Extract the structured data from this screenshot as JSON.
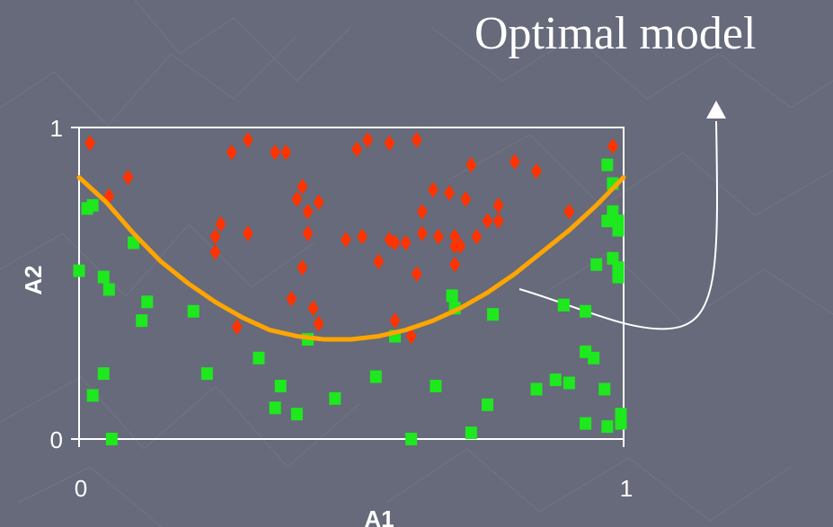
{
  "slide": {
    "title": "Optimal model"
  },
  "colors": {
    "background": "#666a7a",
    "class_a": "#ff3300",
    "class_b": "#1ee81e",
    "model_curve": "#ffa500",
    "axis": "#ffffff"
  },
  "chart_data": {
    "type": "scatter",
    "title": "",
    "xlabel": "A1",
    "ylabel": "A2",
    "xlim": [
      0,
      1
    ],
    "ylim": [
      0,
      1
    ],
    "x_ticks": [
      "0",
      "1"
    ],
    "y_ticks": [
      "0",
      "1"
    ],
    "grid": false,
    "series": [
      {
        "marker": "diamond",
        "color": "#ff3300",
        "points": [
          [
            0.02,
            0.95
          ],
          [
            0.055,
            0.78
          ],
          [
            0.09,
            0.84
          ],
          [
            0.28,
            0.92
          ],
          [
            0.31,
            0.96
          ],
          [
            0.36,
            0.92
          ],
          [
            0.38,
            0.92
          ],
          [
            0.51,
            0.93
          ],
          [
            0.53,
            0.96
          ],
          [
            0.57,
            0.95
          ],
          [
            0.62,
            0.96
          ],
          [
            0.72,
            0.88
          ],
          [
            0.8,
            0.89
          ],
          [
            0.84,
            0.86
          ],
          [
            0.98,
            0.94
          ],
          [
            0.4,
            0.77
          ],
          [
            0.44,
            0.76
          ],
          [
            0.41,
            0.81
          ],
          [
            0.65,
            0.8
          ],
          [
            0.68,
            0.79
          ],
          [
            0.71,
            0.77
          ],
          [
            0.63,
            0.73
          ],
          [
            0.52,
            0.65
          ],
          [
            0.26,
            0.69
          ],
          [
            0.25,
            0.65
          ],
          [
            0.25,
            0.6
          ],
          [
            0.31,
            0.66
          ],
          [
            0.42,
            0.73
          ],
          [
            0.42,
            0.66
          ],
          [
            0.49,
            0.64
          ],
          [
            0.58,
            0.63
          ],
          [
            0.55,
            0.57
          ],
          [
            0.57,
            0.64
          ],
          [
            0.6,
            0.63
          ],
          [
            0.63,
            0.66
          ],
          [
            0.66,
            0.65
          ],
          [
            0.69,
            0.65
          ],
          [
            0.7,
            0.62
          ],
          [
            0.73,
            0.65
          ],
          [
            0.75,
            0.7
          ],
          [
            0.77,
            0.7
          ],
          [
            0.77,
            0.75
          ],
          [
            0.9,
            0.73
          ],
          [
            0.41,
            0.55
          ],
          [
            0.43,
            0.42
          ],
          [
            0.44,
            0.37
          ],
          [
            0.39,
            0.45
          ],
          [
            0.29,
            0.36
          ],
          [
            0.62,
            0.53
          ],
          [
            0.58,
            0.38
          ],
          [
            0.61,
            0.33
          ],
          [
            0.69,
            0.56
          ],
          [
            0.69,
            0.62
          ]
        ]
      },
      {
        "marker": "square",
        "color": "#1ee81e",
        "points": [
          [
            0.0,
            0.54
          ],
          [
            0.015,
            0.74
          ],
          [
            0.045,
            0.52
          ],
          [
            0.025,
            0.75
          ],
          [
            0.1,
            0.63
          ],
          [
            0.125,
            0.44
          ],
          [
            0.115,
            0.38
          ],
          [
            0.21,
            0.41
          ],
          [
            0.055,
            0.48
          ],
          [
            0.045,
            0.21
          ],
          [
            0.025,
            0.14
          ],
          [
            0.06,
            0.0
          ],
          [
            0.235,
            0.21
          ],
          [
            0.33,
            0.26
          ],
          [
            0.37,
            0.17
          ],
          [
            0.36,
            0.1
          ],
          [
            0.4,
            0.08
          ],
          [
            0.47,
            0.13
          ],
          [
            0.42,
            0.32
          ],
          [
            0.58,
            0.33
          ],
          [
            0.545,
            0.2
          ],
          [
            0.61,
            0.0
          ],
          [
            0.655,
            0.17
          ],
          [
            0.685,
            0.46
          ],
          [
            0.69,
            0.42
          ],
          [
            0.76,
            0.4
          ],
          [
            0.75,
            0.11
          ],
          [
            0.72,
            0.02
          ],
          [
            0.89,
            0.43
          ],
          [
            0.84,
            0.16
          ],
          [
            0.875,
            0.19
          ],
          [
            0.9,
            0.18
          ],
          [
            0.93,
            0.41
          ],
          [
            0.93,
            0.28
          ],
          [
            0.945,
            0.26
          ],
          [
            0.965,
            0.16
          ],
          [
            0.93,
            0.05
          ],
          [
            0.97,
            0.04
          ],
          [
            0.95,
            0.56
          ],
          [
            0.98,
            0.58
          ],
          [
            0.99,
            0.55
          ],
          [
            0.99,
            0.52
          ],
          [
            0.97,
            0.7
          ],
          [
            0.98,
            0.73
          ],
          [
            0.99,
            0.67
          ],
          [
            0.995,
            0.05
          ],
          [
            0.995,
            0.08
          ],
          [
            0.97,
            0.88
          ],
          [
            0.98,
            0.82
          ],
          [
            0.99,
            0.7
          ],
          [
            0.89,
            0.43
          ]
        ]
      },
      {
        "marker": "line",
        "color": "#ffa500",
        "x": [
          0.0,
          0.05,
          0.1,
          0.15,
          0.2,
          0.25,
          0.3,
          0.35,
          0.4,
          0.45,
          0.5,
          0.55,
          0.6,
          0.65,
          0.7,
          0.75,
          0.8,
          0.85,
          0.9,
          0.95,
          1.0
        ],
        "y": [
          0.84,
          0.76,
          0.66,
          0.57,
          0.5,
          0.44,
          0.39,
          0.35,
          0.33,
          0.32,
          0.32,
          0.33,
          0.35,
          0.38,
          0.42,
          0.47,
          0.53,
          0.6,
          0.67,
          0.75,
          0.84
        ]
      }
    ]
  }
}
